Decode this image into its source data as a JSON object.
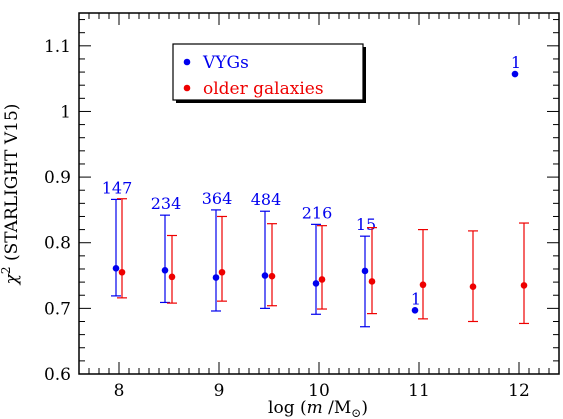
{
  "chart_data": {
    "type": "scatter",
    "title": "",
    "xlabel_prefix": "log (",
    "xlabel_var": "m",
    "xlabel_mid": " /M",
    "xlabel_sub": "⊙",
    "xlabel_suffix": ")",
    "ylabel_base": "χ",
    "ylabel_sup": "2",
    "ylabel_rest": " (STARLIGHT V15)",
    "xlim": [
      7.6,
      12.4
    ],
    "ylim": [
      0.6,
      1.15
    ],
    "x_ticks": [
      "8",
      "9",
      "10",
      "11",
      "12"
    ],
    "y_ticks": [
      "0.6",
      "0.7",
      "0.8",
      "0.9",
      "1",
      "1.1"
    ],
    "legend_placement": "top-center",
    "series": [
      {
        "name": "VYGs",
        "color": "#0000ee",
        "points": [
          {
            "x": 7.97,
            "y": 0.761,
            "ylo": 0.719,
            "yhi": 0.866,
            "n": "147"
          },
          {
            "x": 8.46,
            "y": 0.758,
            "ylo": 0.709,
            "yhi": 0.842,
            "n": "234"
          },
          {
            "x": 8.97,
            "y": 0.747,
            "ylo": 0.696,
            "yhi": 0.85,
            "n": "364"
          },
          {
            "x": 9.46,
            "y": 0.75,
            "ylo": 0.7,
            "yhi": 0.848,
            "n": "484"
          },
          {
            "x": 9.97,
            "y": 0.738,
            "ylo": 0.691,
            "yhi": 0.828,
            "n": "216"
          },
          {
            "x": 10.46,
            "y": 0.757,
            "ylo": 0.672,
            "yhi": 0.81,
            "n": "15"
          },
          {
            "x": 10.96,
            "y": 0.697,
            "ylo": null,
            "yhi": null,
            "n": "1"
          },
          {
            "x": 11.96,
            "y": 1.057,
            "ylo": null,
            "yhi": null,
            "n": "1"
          }
        ]
      },
      {
        "name": "older galaxies",
        "color": "#ee0000",
        "points": [
          {
            "x": 8.03,
            "y": 0.755,
            "ylo": 0.716,
            "yhi": 0.867
          },
          {
            "x": 8.53,
            "y": 0.748,
            "ylo": 0.708,
            "yhi": 0.811
          },
          {
            "x": 9.03,
            "y": 0.755,
            "ylo": 0.711,
            "yhi": 0.84
          },
          {
            "x": 9.53,
            "y": 0.749,
            "ylo": 0.704,
            "yhi": 0.829
          },
          {
            "x": 10.03,
            "y": 0.744,
            "ylo": 0.699,
            "yhi": 0.826
          },
          {
            "x": 10.53,
            "y": 0.741,
            "ylo": 0.692,
            "yhi": 0.823
          },
          {
            "x": 11.04,
            "y": 0.736,
            "ylo": 0.684,
            "yhi": 0.82
          },
          {
            "x": 11.54,
            "y": 0.733,
            "ylo": 0.68,
            "yhi": 0.818
          },
          {
            "x": 12.05,
            "y": 0.735,
            "ylo": 0.677,
            "yhi": 0.83
          }
        ]
      }
    ]
  }
}
